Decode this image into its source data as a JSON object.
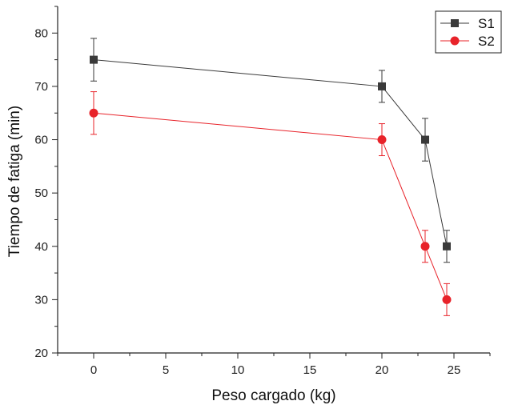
{
  "chart_data": {
    "type": "line",
    "title": "",
    "xlabel": "Peso cargado (kg)",
    "ylabel": "Tiempo de fatiga (min)",
    "xlim": [
      -2.5,
      27.5
    ],
    "ylim": [
      20,
      85
    ],
    "xticks": [
      0,
      5,
      10,
      15,
      20,
      25
    ],
    "yticks": [
      20,
      30,
      40,
      50,
      60,
      70,
      80
    ],
    "grid": false,
    "legend_position": "top-right",
    "series": [
      {
        "name": "S1",
        "color": "#3a3a3a",
        "marker": "square",
        "x": [
          0,
          20,
          23,
          24.5
        ],
        "y": [
          75,
          70,
          60,
          40
        ],
        "error": [
          4,
          3,
          4,
          3
        ]
      },
      {
        "name": "S2",
        "color": "#e8232a",
        "marker": "circle",
        "x": [
          0,
          20,
          23,
          24.5
        ],
        "y": [
          65,
          60,
          40,
          30
        ],
        "error": [
          4,
          3,
          3,
          3
        ]
      }
    ]
  }
}
